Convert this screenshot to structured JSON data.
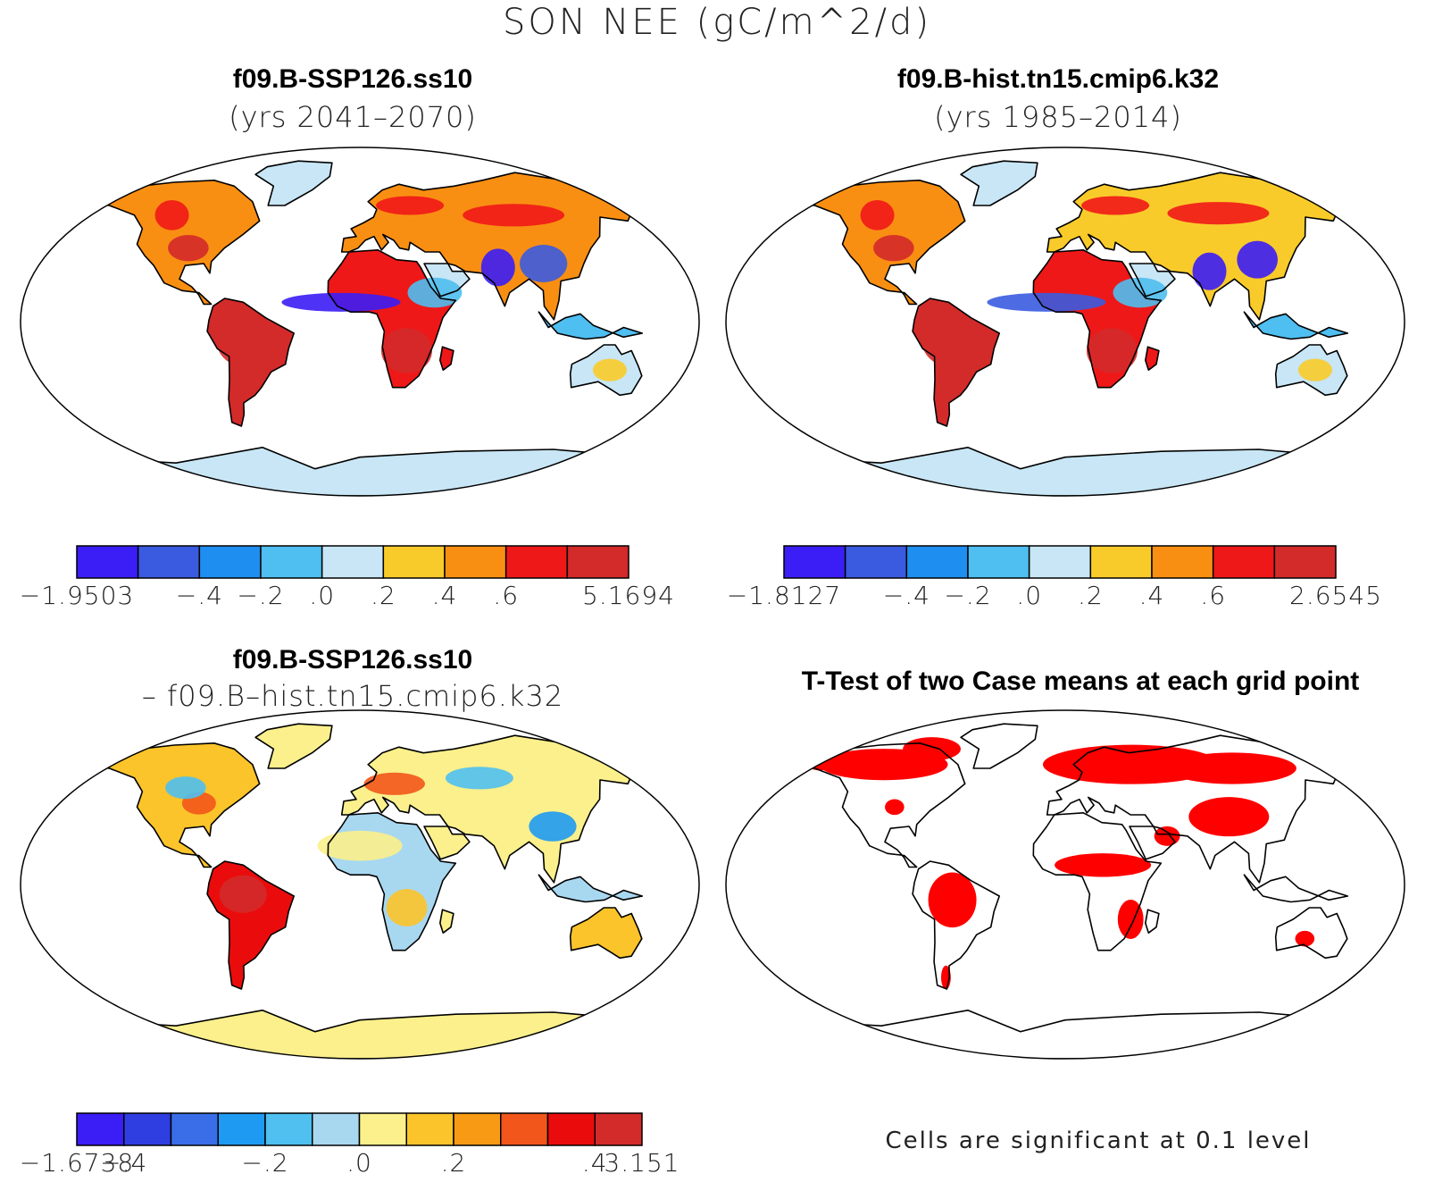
{
  "figure_title": "SON NEE (gC/m^2/d)",
  "panels": [
    {
      "id": "ssp126",
      "title": "f09.B-SSP126.ss10",
      "subtitle": "(yrs 2041–2070)",
      "colorbar": {
        "colors": [
          "#3b1df5",
          "#3a5be0",
          "#1e8ef0",
          "#4fbef0",
          "#c8e6f5",
          "#f9cb2a",
          "#f98f12",
          "#ef1818",
          "#d32a2a"
        ],
        "labels": [
          "−1.9503",
          "−.4",
          "−.2",
          ".0",
          ".2",
          ".4",
          ".6",
          "5.1694"
        ]
      }
    },
    {
      "id": "hist",
      "title": "f09.B-hist.tn15.cmip6.k32",
      "subtitle": "(yrs 1985–2014)",
      "colorbar": {
        "colors": [
          "#3b1df5",
          "#3a5be0",
          "#1e8ef0",
          "#4fbef0",
          "#c8e6f5",
          "#f9cb2a",
          "#f98f12",
          "#ef1818",
          "#d32a2a"
        ],
        "labels": [
          "−1.8127",
          "−.4",
          "−.2",
          ".0",
          ".2",
          ".4",
          ".6",
          "2.6545"
        ]
      }
    },
    {
      "id": "diff",
      "title": "f09.B-SSP126.ss10",
      "subtitle": "– f09.B–hist.tn15.cmip6.k32",
      "colorbar": {
        "colors": [
          "#3b1df5",
          "#2f3ee0",
          "#3a6ee8",
          "#1e9af2",
          "#4fc0f0",
          "#a8d8f0",
          "#fbf08c",
          "#fbc42a",
          "#f99a14",
          "#f2561a",
          "#ea0c0c",
          "#d32a2a"
        ],
        "labels": [
          "−1.6738",
          "−.4",
          "−.2",
          ".0",
          ".2",
          ".4",
          "3.151"
        ]
      }
    }
  ],
  "ttest": {
    "title": "T-Test of two Case means at each grid point",
    "note": "Cells are significant at 0.1 level",
    "color": "#ff0000"
  }
}
